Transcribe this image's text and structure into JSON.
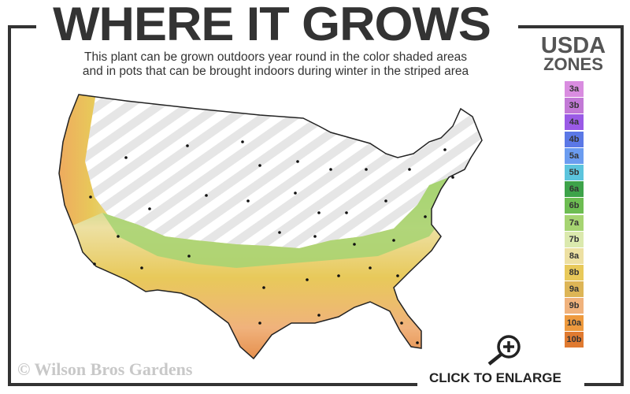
{
  "header": {
    "title": "WHERE IT GROWS",
    "subtitle_line1": "This plant can be grown outdoors year round in the color shaded areas",
    "subtitle_line2": "and in pots that can be brought indoors during winter in the striped area"
  },
  "legend": {
    "title_line1": "USDA",
    "title_line2": "ZONES",
    "zones": [
      {
        "label": "3a",
        "color": "#d98ce0"
      },
      {
        "label": "3b",
        "color": "#c279d6"
      },
      {
        "label": "4a",
        "color": "#9a5ae6"
      },
      {
        "label": "4b",
        "color": "#5b78e6"
      },
      {
        "label": "5a",
        "color": "#6b9cf0"
      },
      {
        "label": "5b",
        "color": "#5cc4dd"
      },
      {
        "label": "6a",
        "color": "#3da34a"
      },
      {
        "label": "6b",
        "color": "#6dbd52"
      },
      {
        "label": "7a",
        "color": "#a6d472"
      },
      {
        "label": "7b",
        "color": "#dbe9ae"
      },
      {
        "label": "8a",
        "color": "#ede0a2"
      },
      {
        "label": "8b",
        "color": "#e8c95a"
      },
      {
        "label": "9a",
        "color": "#ddb556"
      },
      {
        "label": "9b",
        "color": "#f0b27c"
      },
      {
        "label": "10a",
        "color": "#ee9a3e"
      },
      {
        "label": "10b",
        "color": "#e07a30"
      }
    ]
  },
  "map": {
    "striped_color": "#e6e6e6",
    "outline_color": "#222222"
  },
  "footer": {
    "copyright": "© Wilson Bros Gardens",
    "enlarge_label": "CLICK TO ENLARGE",
    "enlarge_icon": "zoom-in-magnifier-icon"
  }
}
